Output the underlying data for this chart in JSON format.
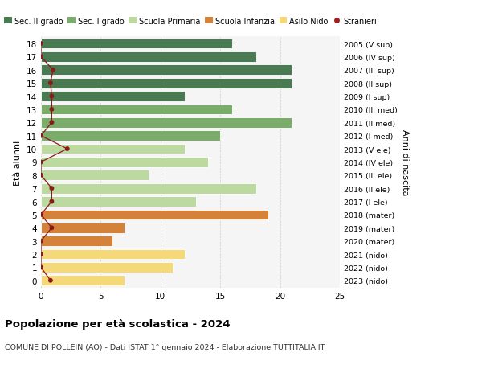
{
  "ages": [
    18,
    17,
    16,
    15,
    14,
    13,
    12,
    11,
    10,
    9,
    8,
    7,
    6,
    5,
    4,
    3,
    2,
    1,
    0
  ],
  "values": [
    16,
    18,
    21,
    21,
    12,
    16,
    21,
    15,
    12,
    14,
    9,
    18,
    13,
    19,
    7,
    6,
    12,
    11,
    7
  ],
  "right_labels": [
    "2005 (V sup)",
    "2006 (IV sup)",
    "2007 (III sup)",
    "2008 (II sup)",
    "2009 (I sup)",
    "2010 (III med)",
    "2011 (II med)",
    "2012 (I med)",
    "2013 (V ele)",
    "2014 (IV ele)",
    "2015 (III ele)",
    "2016 (II ele)",
    "2017 (I ele)",
    "2018 (mater)",
    "2019 (mater)",
    "2020 (mater)",
    "2021 (nido)",
    "2022 (nido)",
    "2023 (nido)"
  ],
  "bar_colors": [
    "#4a7a52",
    "#4a7a52",
    "#4a7a52",
    "#4a7a52",
    "#4a7a52",
    "#7aad6a",
    "#7aad6a",
    "#7aad6a",
    "#bcd9a0",
    "#bcd9a0",
    "#bcd9a0",
    "#bcd9a0",
    "#bcd9a0",
    "#d4813a",
    "#d4813a",
    "#d4813a",
    "#f5d878",
    "#f5d878",
    "#f5d878"
  ],
  "stranieri_x": [
    0,
    0,
    1.0,
    0.8,
    0.9,
    0.9,
    0.9,
    0,
    2.2,
    0,
    0,
    0.9,
    0.9,
    0,
    0.9,
    0,
    0,
    0,
    0.8
  ],
  "legend_labels": [
    "Sec. II grado",
    "Sec. I grado",
    "Scuola Primaria",
    "Scuola Infanzia",
    "Asilo Nido",
    "Stranieri"
  ],
  "legend_colors": [
    "#4a7a52",
    "#7aad6a",
    "#bcd9a0",
    "#d4813a",
    "#f5d878",
    "#a02020"
  ],
  "title": "Popolazione per età scolastica - 2024",
  "subtitle": "COMUNE DI POLLEIN (AO) - Dati ISTAT 1° gennaio 2024 - Elaborazione TUTTITALIA.IT",
  "ylabel": "Età alunni",
  "ylabel_right": "Anni di nascita",
  "xlim": [
    0,
    25
  ],
  "background_color": "#f5f5f5",
  "stranieri_color": "#8b1a1a",
  "bar_height": 0.78
}
